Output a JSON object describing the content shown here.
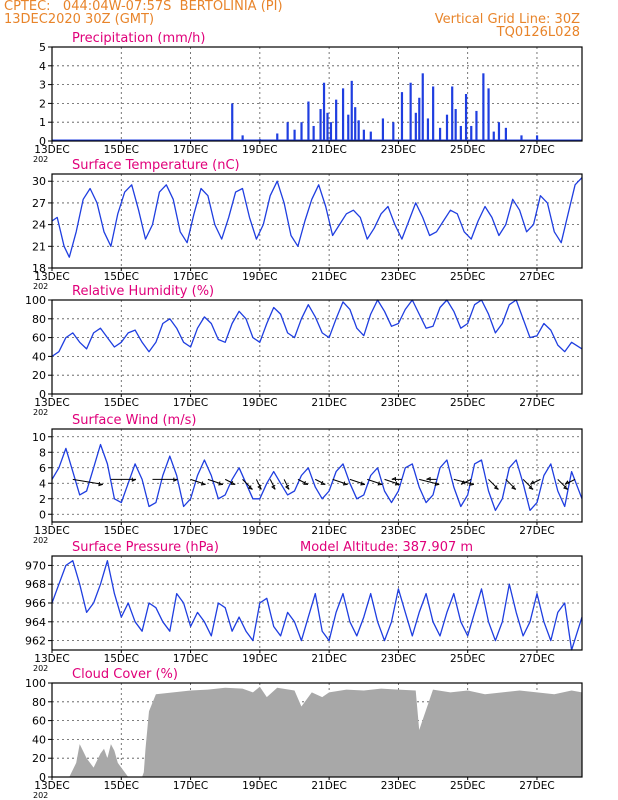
{
  "header": {
    "left_line1": "CPTEC:   044:04W-07:57S  BERTOLINIA (PI)",
    "left_line2": "13DEC2020 30Z (GMT)",
    "right_line1": "Vertical Grid Line: 30Z",
    "right_line2": "TQ0126L028"
  },
  "colors": {
    "header": "#e8842a",
    "title": "#e0007a",
    "series": "#1f3ee0",
    "cloud": "#a8a8a8",
    "grid": "#555555"
  },
  "x_axis": {
    "tick_labels": [
      "13DEC",
      "15DEC",
      "17DEC",
      "19DEC",
      "21DEC",
      "23DEC",
      "25DEC",
      "27DEC"
    ],
    "tick_days": [
      0,
      2,
      4,
      6,
      8,
      10,
      12,
      14
    ],
    "span_days": 15.3,
    "year_stub": "202"
  },
  "chart_data": [
    {
      "id": "precip",
      "type": "bar",
      "title": "Precipitation (mm/h)",
      "ylim": [
        0,
        5
      ],
      "yticks": [
        0,
        1,
        2,
        3,
        4,
        5
      ],
      "grid": true,
      "x_days": [
        5.2,
        5.5,
        6.0,
        6.5,
        6.8,
        7.0,
        7.2,
        7.4,
        7.55,
        7.75,
        7.85,
        7.95,
        8.05,
        8.2,
        8.4,
        8.55,
        8.65,
        8.75,
        8.85,
        9.0,
        9.2,
        9.55,
        9.85,
        10.1,
        10.35,
        10.5,
        10.6,
        10.7,
        10.85,
        11.0,
        11.2,
        11.4,
        11.55,
        11.65,
        11.8,
        11.95,
        12.1,
        12.25,
        12.45,
        12.6,
        12.75,
        12.9,
        13.1,
        13.55,
        14.0
      ],
      "values": [
        2.0,
        0.3,
        0.1,
        0.4,
        1.0,
        0.6,
        1.0,
        2.1,
        0.8,
        1.7,
        3.1,
        1.5,
        1.0,
        2.2,
        2.8,
        1.4,
        3.2,
        1.8,
        1.1,
        0.6,
        0.5,
        1.2,
        1.0,
        2.6,
        3.1,
        1.5,
        2.3,
        3.6,
        1.2,
        2.9,
        0.7,
        1.4,
        2.9,
        1.7,
        0.8,
        2.5,
        0.8,
        1.6,
        3.6,
        2.8,
        0.5,
        1.0,
        0.7,
        0.3,
        0.3
      ]
    },
    {
      "id": "temp",
      "type": "line",
      "title": "Surface Temperature (nC)",
      "ylim": [
        18,
        31
      ],
      "yticks": [
        18,
        21,
        24,
        27,
        30
      ],
      "grid": true,
      "x_days": [
        0,
        0.15,
        0.35,
        0.5,
        0.7,
        0.9,
        1.1,
        1.3,
        1.5,
        1.7,
        1.9,
        2.1,
        2.3,
        2.5,
        2.7,
        2.9,
        3.1,
        3.3,
        3.5,
        3.7,
        3.9,
        4.1,
        4.3,
        4.5,
        4.7,
        4.9,
        5.1,
        5.3,
        5.5,
        5.7,
        5.9,
        6.1,
        6.3,
        6.5,
        6.7,
        6.9,
        7.1,
        7.3,
        7.5,
        7.7,
        7.9,
        8.1,
        8.3,
        8.5,
        8.7,
        8.9,
        9.1,
        9.3,
        9.5,
        9.7,
        9.9,
        10.1,
        10.3,
        10.5,
        10.7,
        10.9,
        11.1,
        11.3,
        11.5,
        11.7,
        11.9,
        12.1,
        12.3,
        12.5,
        12.7,
        12.9,
        13.1,
        13.3,
        13.5,
        13.7,
        13.9,
        14.1,
        14.3,
        14.5,
        14.7,
        14.9,
        15.1,
        15.3
      ],
      "values": [
        24.5,
        25.0,
        21.0,
        19.5,
        23.0,
        27.5,
        29.0,
        27.0,
        23.0,
        21.0,
        25.5,
        28.5,
        29.5,
        26.0,
        22.0,
        24.0,
        28.5,
        29.5,
        27.5,
        23.0,
        21.5,
        25.5,
        29.0,
        28.0,
        24.0,
        22.0,
        25.0,
        28.5,
        29.0,
        25.0,
        22.0,
        24.0,
        28.0,
        30.0,
        27.0,
        22.5,
        21.0,
        24.5,
        27.5,
        29.5,
        26.5,
        22.5,
        24.0,
        25.5,
        26.0,
        25.0,
        22.0,
        23.5,
        25.5,
        26.5,
        24.0,
        22.0,
        24.5,
        27.0,
        25.0,
        22.5,
        23.0,
        24.5,
        26.0,
        25.5,
        23.0,
        22.0,
        24.5,
        26.5,
        25.0,
        22.5,
        24.0,
        27.5,
        26.0,
        23.0,
        24.0,
        28.0,
        27.0,
        23.0,
        21.5,
        25.5,
        29.5,
        30.5
      ]
    },
    {
      "id": "rh",
      "type": "line",
      "title": "Relative Humidity (%)",
      "ylim": [
        0,
        100
      ],
      "yticks": [
        0,
        20,
        40,
        60,
        80,
        100
      ],
      "grid": true,
      "x_days": [
        0,
        0.2,
        0.4,
        0.6,
        0.8,
        1.0,
        1.2,
        1.4,
        1.6,
        1.8,
        2.0,
        2.2,
        2.4,
        2.6,
        2.8,
        3.0,
        3.2,
        3.4,
        3.6,
        3.8,
        4.0,
        4.2,
        4.4,
        4.6,
        4.8,
        5.0,
        5.2,
        5.4,
        5.6,
        5.8,
        6.0,
        6.2,
        6.4,
        6.6,
        6.8,
        7.0,
        7.2,
        7.4,
        7.6,
        7.8,
        8.0,
        8.2,
        8.4,
        8.6,
        8.8,
        9.0,
        9.2,
        9.4,
        9.6,
        9.8,
        10.0,
        10.2,
        10.4,
        10.6,
        10.8,
        11.0,
        11.2,
        11.4,
        11.6,
        11.8,
        12.0,
        12.2,
        12.4,
        12.6,
        12.8,
        13.0,
        13.2,
        13.4,
        13.6,
        13.8,
        14.0,
        14.2,
        14.4,
        14.6,
        14.8,
        15.0,
        15.3
      ],
      "values": [
        40,
        45,
        60,
        65,
        55,
        48,
        65,
        70,
        60,
        50,
        55,
        65,
        68,
        55,
        45,
        55,
        75,
        80,
        70,
        55,
        50,
        70,
        82,
        75,
        58,
        55,
        75,
        88,
        80,
        60,
        55,
        75,
        92,
        85,
        65,
        60,
        80,
        95,
        82,
        65,
        60,
        80,
        98,
        90,
        70,
        62,
        85,
        100,
        88,
        72,
        75,
        90,
        100,
        85,
        70,
        72,
        92,
        100,
        88,
        70,
        75,
        95,
        100,
        85,
        65,
        75,
        95,
        100,
        80,
        60,
        62,
        75,
        68,
        52,
        45,
        55,
        48
      ]
    },
    {
      "id": "wind",
      "type": "line",
      "title": "Surface Wind (m/s)",
      "ylim": [
        -1,
        11
      ],
      "yticks": [
        0,
        2,
        4,
        6,
        8,
        10
      ],
      "grid": true,
      "x_days": [
        0,
        0.2,
        0.4,
        0.6,
        0.8,
        1.0,
        1.2,
        1.4,
        1.6,
        1.8,
        2.0,
        2.2,
        2.4,
        2.6,
        2.8,
        3.0,
        3.2,
        3.4,
        3.6,
        3.8,
        4.0,
        4.2,
        4.4,
        4.6,
        4.8,
        5.0,
        5.2,
        5.4,
        5.6,
        5.8,
        6.0,
        6.2,
        6.4,
        6.6,
        6.8,
        7.0,
        7.2,
        7.4,
        7.6,
        7.8,
        8.0,
        8.2,
        8.4,
        8.6,
        8.8,
        9.0,
        9.2,
        9.4,
        9.6,
        9.8,
        10.0,
        10.2,
        10.4,
        10.6,
        10.8,
        11.0,
        11.2,
        11.4,
        11.6,
        11.8,
        12.0,
        12.2,
        12.4,
        12.6,
        12.8,
        13.0,
        13.2,
        13.4,
        13.6,
        13.8,
        14.0,
        14.2,
        14.4,
        14.6,
        14.8,
        15.0,
        15.3
      ],
      "values": [
        4.5,
        6.0,
        8.5,
        5.5,
        2.5,
        3.0,
        6.0,
        9.0,
        6.5,
        2.0,
        1.5,
        4.0,
        6.5,
        4.5,
        1.0,
        1.5,
        5.0,
        7.5,
        5.0,
        1.0,
        2.0,
        5.0,
        7.0,
        5.0,
        2.0,
        2.5,
        4.5,
        6.0,
        4.0,
        2.0,
        2.0,
        4.0,
        5.5,
        4.0,
        2.5,
        3.0,
        5.0,
        6.0,
        3.5,
        2.0,
        3.0,
        5.5,
        6.5,
        4.0,
        2.0,
        2.5,
        5.0,
        6.0,
        3.0,
        1.5,
        3.0,
        6.0,
        6.5,
        3.5,
        1.5,
        2.5,
        6.0,
        7.0,
        3.5,
        1.0,
        2.5,
        6.5,
        7.0,
        3.0,
        0.5,
        2.0,
        6.0,
        7.0,
        4.0,
        0.5,
        1.5,
        5.0,
        6.5,
        3.0,
        1.0,
        5.5,
        2.0
      ],
      "vectors": {
        "x_days": [
          0.6,
          1.7,
          2.9,
          4.0,
          4.5,
          5.0,
          5.5,
          5.9,
          6.3,
          6.7,
          7.1,
          7.6,
          8.1,
          8.6,
          9.1,
          9.6,
          10.1,
          10.6,
          11.1,
          11.6,
          12.1,
          12.6,
          13.1,
          13.6,
          14.1,
          14.6,
          15.1
        ],
        "u": [
          6,
          5,
          5,
          3,
          3,
          2,
          2,
          1,
          1,
          1,
          2,
          2,
          3,
          3,
          3,
          3,
          -2,
          4,
          -2,
          4,
          -2,
          2,
          2,
          2,
          -2,
          2,
          -2
        ],
        "v": [
          -1,
          0,
          0,
          -1,
          -1,
          -1,
          -2,
          -2,
          -2,
          -2,
          -1,
          -1,
          -1,
          -1,
          -1,
          -1,
          0,
          -1,
          0,
          -1,
          -1,
          -2,
          -2,
          -2,
          -1,
          -2,
          -1
        ]
      }
    },
    {
      "id": "pressure",
      "type": "line",
      "title": "Surface Pressure (hPa)",
      "annotation": "Model Altitude: 387.907 m",
      "ylim": [
        961,
        971
      ],
      "yticks": [
        962,
        964,
        966,
        968,
        970
      ],
      "grid": true,
      "x_days": [
        0,
        0.2,
        0.4,
        0.6,
        0.8,
        1.0,
        1.2,
        1.4,
        1.6,
        1.8,
        2.0,
        2.2,
        2.4,
        2.6,
        2.8,
        3.0,
        3.2,
        3.4,
        3.6,
        3.8,
        4.0,
        4.2,
        4.4,
        4.6,
        4.8,
        5.0,
        5.2,
        5.4,
        5.6,
        5.8,
        6.0,
        6.2,
        6.4,
        6.6,
        6.8,
        7.0,
        7.2,
        7.4,
        7.6,
        7.8,
        8.0,
        8.2,
        8.4,
        8.6,
        8.8,
        9.0,
        9.2,
        9.4,
        9.6,
        9.8,
        10.0,
        10.2,
        10.4,
        10.6,
        10.8,
        11.0,
        11.2,
        11.4,
        11.6,
        11.8,
        12.0,
        12.2,
        12.4,
        12.6,
        12.8,
        13.0,
        13.2,
        13.4,
        13.6,
        13.8,
        14.0,
        14.2,
        14.4,
        14.6,
        14.8,
        15.0,
        15.3
      ],
      "values": [
        966,
        968,
        970,
        970.5,
        968,
        965,
        966,
        968,
        970.5,
        967,
        964.5,
        966,
        964,
        963,
        966,
        965.5,
        964,
        963,
        967,
        966,
        963.5,
        965,
        964,
        962.5,
        966,
        965.5,
        963,
        964.5,
        963,
        962,
        966,
        966.5,
        963.5,
        962.5,
        965,
        964,
        962,
        964.5,
        967,
        963,
        962,
        965,
        967,
        964,
        962.5,
        964.5,
        967,
        964,
        962,
        964,
        967.5,
        965,
        962.5,
        965,
        967,
        964,
        962.5,
        965,
        967,
        964,
        962.5,
        965,
        967.5,
        964,
        962,
        964,
        968,
        965,
        962.5,
        964,
        967,
        964,
        962,
        965,
        966,
        961,
        964.5
      ]
    },
    {
      "id": "cloud",
      "type": "area",
      "title": "Cloud Cover (%)",
      "ylim": [
        0,
        100
      ],
      "yticks": [
        0,
        20,
        40,
        60,
        80,
        100
      ],
      "grid": true,
      "x_days": [
        0,
        0.3,
        0.5,
        0.7,
        0.8,
        1.0,
        1.2,
        1.4,
        1.5,
        1.6,
        1.7,
        1.8,
        1.9,
        2.0,
        2.1,
        2.2,
        2.3,
        2.4,
        2.5,
        2.6,
        2.65,
        2.7,
        2.8,
        3.0,
        3.5,
        4.0,
        4.5,
        5.0,
        5.5,
        5.8,
        6.0,
        6.2,
        6.5,
        7.0,
        7.2,
        7.5,
        7.8,
        8.0,
        8.5,
        9.0,
        9.5,
        10.0,
        10.5,
        10.6,
        11.0,
        11.5,
        12.0,
        12.5,
        13.0,
        13.5,
        14.0,
        14.5,
        15.0,
        15.3
      ],
      "values": [
        0,
        0,
        0,
        15,
        35,
        20,
        10,
        25,
        30,
        20,
        35,
        28,
        15,
        10,
        5,
        0,
        0,
        0,
        0,
        0,
        5,
        30,
        70,
        88,
        90,
        92,
        93,
        95,
        94,
        90,
        96,
        85,
        95,
        92,
        75,
        90,
        85,
        90,
        93,
        92,
        94,
        93,
        92,
        50,
        93,
        90,
        92,
        88,
        90,
        92,
        90,
        88,
        92,
        90
      ]
    }
  ]
}
